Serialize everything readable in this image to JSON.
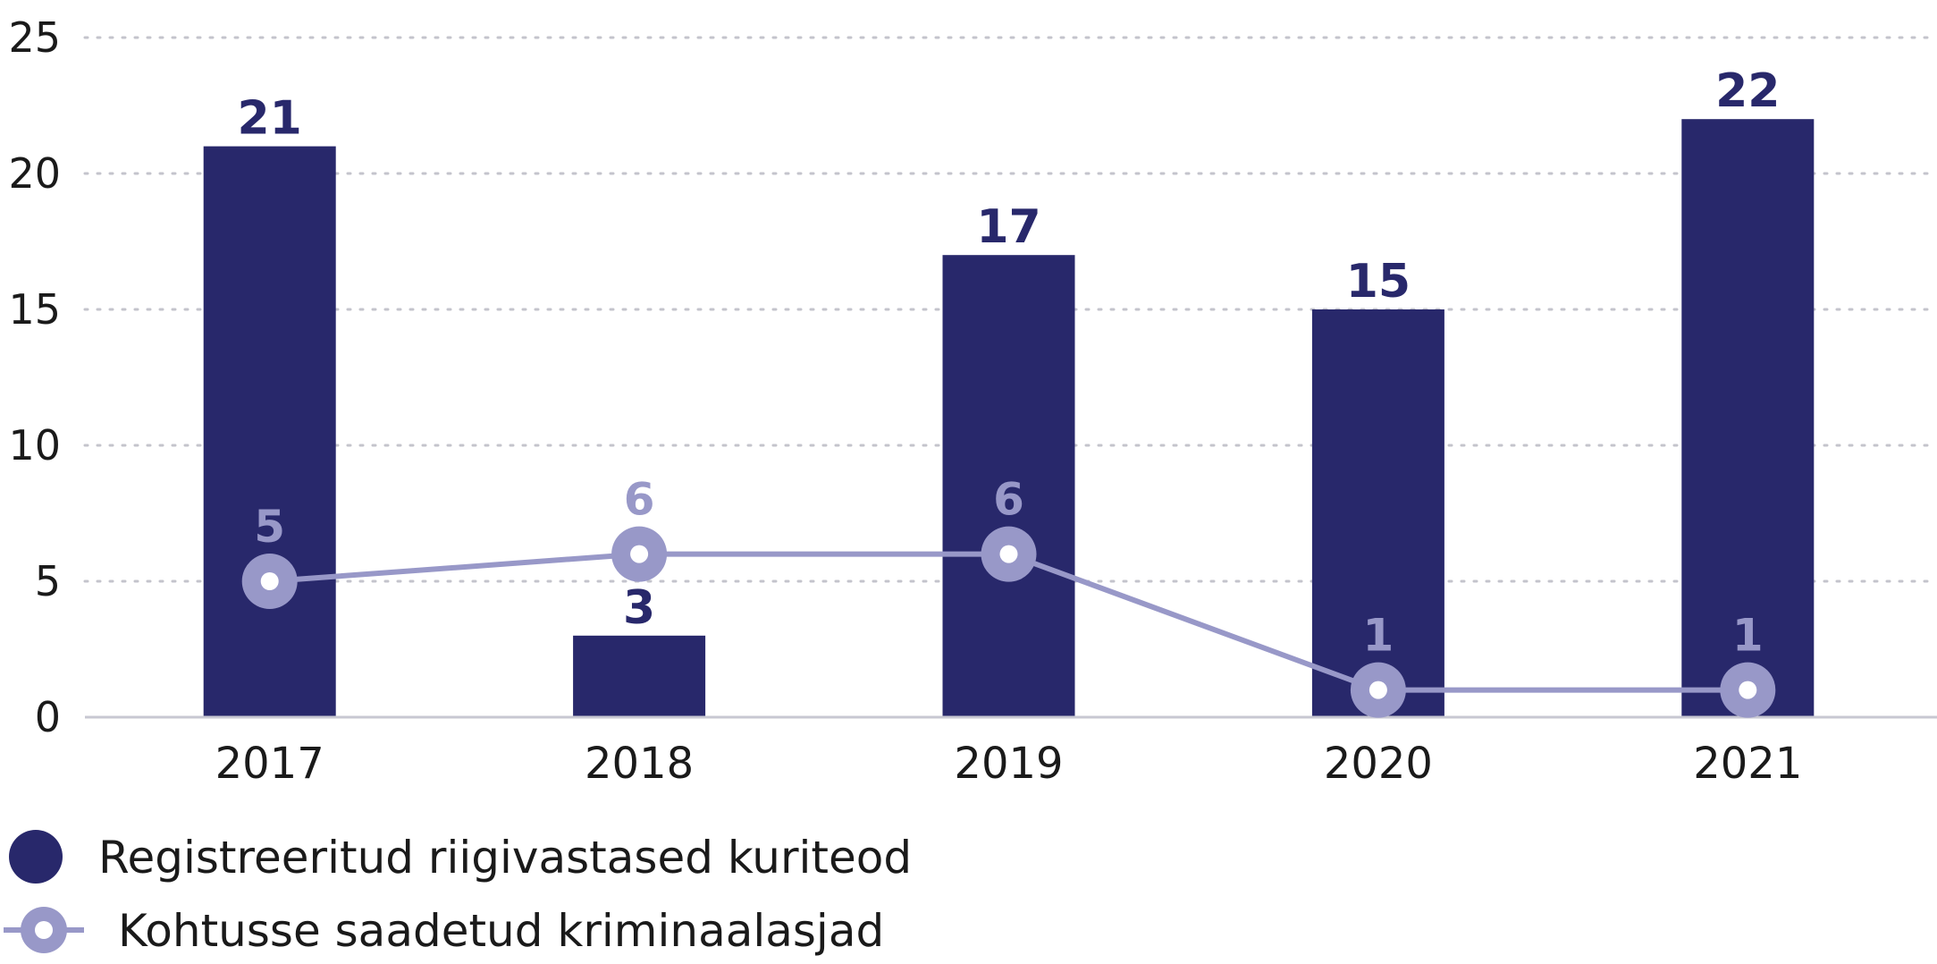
{
  "chart_data": {
    "type": "bar",
    "categories": [
      "2017",
      "2018",
      "2019",
      "2020",
      "2021"
    ],
    "series": [
      {
        "name": "Registreeritud riigivastased kuriteod",
        "kind": "bar",
        "values": [
          21,
          3,
          17,
          15,
          22
        ],
        "color": "#28286b"
      },
      {
        "name": "Kohtusse saadetud kriminaalasjad",
        "kind": "line",
        "values": [
          5,
          6,
          6,
          1,
          1
        ],
        "color": "#9898c8"
      }
    ],
    "y_ticks": [
      "0",
      "5",
      "10",
      "15",
      "20",
      "25"
    ],
    "ylim": [
      0,
      25
    ],
    "grid": true,
    "legend_position": "bottom-left"
  }
}
